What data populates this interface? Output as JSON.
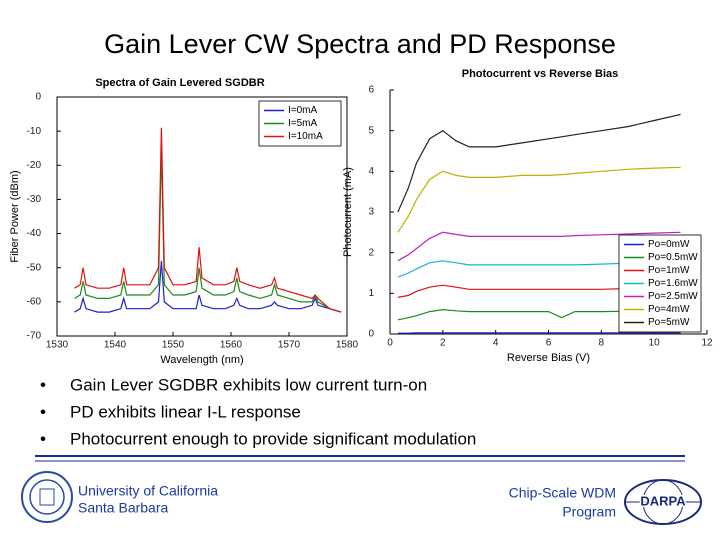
{
  "title": "Gain Lever CW Spectra and PD Response",
  "bullets": [
    "Gain Lever SGDBR exhibits low current turn-on",
    "PD exhibits linear I-L response",
    "Photocurrent enough to provide significant modulation"
  ],
  "footer": {
    "university": [
      "University of California",
      "Santa Barbara"
    ],
    "program": [
      "Chip-Scale WDM",
      "Program"
    ],
    "logo": "DARPA"
  },
  "chart_data": [
    {
      "type": "line",
      "title": "Spectra of Gain Levered SGDBR",
      "xlabel": "Wavelength (nm)",
      "ylabel": "Fiber Power (dBm)",
      "xlim": [
        1530,
        1580
      ],
      "ylim": [
        -70,
        0
      ],
      "xticks": [
        1530,
        1540,
        1550,
        1560,
        1570,
        1580
      ],
      "yticks": [
        0,
        -10,
        -20,
        -30,
        -40,
        -50,
        -60,
        -70
      ],
      "legend": "upper right",
      "x": [
        1533,
        1534,
        1534.5,
        1535,
        1537,
        1539,
        1541,
        1541.5,
        1542,
        1544,
        1546,
        1547.5,
        1548,
        1548.5,
        1550,
        1552,
        1554,
        1554.5,
        1555,
        1557,
        1559,
        1560.5,
        1561,
        1561.5,
        1563,
        1565,
        1567,
        1567.5,
        1568,
        1570,
        1572,
        1574,
        1574.5,
        1575,
        1577,
        1579
      ],
      "series": [
        {
          "name": "I=0mA",
          "color": "#1f1fd0",
          "values": [
            -63,
            -62,
            -59,
            -62,
            -63,
            -63,
            -62,
            -59,
            -62,
            -62,
            -62,
            -60,
            -48,
            -60,
            -62,
            -62,
            -62,
            -58,
            -61,
            -62,
            -62,
            -61,
            -59,
            -61,
            -62,
            -62,
            -61,
            -60,
            -61,
            -62,
            -62,
            -61,
            -59,
            -61,
            -62,
            -63
          ]
        },
        {
          "name": "I=5mA",
          "color": "#1a8c1a",
          "values": [
            -59,
            -58,
            -54,
            -58,
            -59,
            -59,
            -58,
            -54,
            -58,
            -58,
            -58,
            -55,
            -15,
            -55,
            -58,
            -58,
            -57,
            -50,
            -56,
            -58,
            -58,
            -57,
            -53,
            -57,
            -58,
            -59,
            -58,
            -55,
            -58,
            -59,
            -60,
            -60,
            -58,
            -60,
            -62,
            -63
          ]
        },
        {
          "name": "I=10mA",
          "color": "#e01010",
          "values": [
            -56,
            -55,
            -50,
            -55,
            -56,
            -56,
            -55,
            -50,
            -55,
            -55,
            -55,
            -50,
            -9,
            -50,
            -55,
            -55,
            -54,
            -44,
            -53,
            -55,
            -55,
            -54,
            -50,
            -54,
            -55,
            -56,
            -55,
            -53,
            -56,
            -57,
            -58,
            -59,
            -58,
            -59,
            -62,
            -63
          ]
        }
      ]
    },
    {
      "type": "line",
      "title": "Photocurrent vs Reverse Bias",
      "xlabel": "Reverse Bias (V)",
      "ylabel": "Photocurrent (mA)",
      "xlim": [
        0,
        12
      ],
      "ylim": [
        0,
        6
      ],
      "xticks": [
        0,
        2,
        4,
        6,
        8,
        10,
        12
      ],
      "yticks": [
        0,
        1,
        2,
        3,
        4,
        5,
        6
      ],
      "legend": "lower right",
      "x": [
        0.3,
        0.7,
        1,
        1.5,
        2,
        2.5,
        3,
        4,
        5,
        6,
        6.5,
        7,
        8,
        9,
        10,
        11
      ],
      "series": [
        {
          "name": "Po=0mW",
          "color": "#1f1fd0",
          "values": [
            0.02,
            0.02,
            0.03,
            0.03,
            0.03,
            0.03,
            0.03,
            0.03,
            0.03,
            0.03,
            0.03,
            0.03,
            0.03,
            0.03,
            0.03,
            0.03
          ]
        },
        {
          "name": "Po=0.5mW",
          "color": "#1a8c1a",
          "values": [
            0.35,
            0.4,
            0.45,
            0.55,
            0.6,
            0.57,
            0.55,
            0.55,
            0.55,
            0.55,
            0.4,
            0.55,
            0.55,
            0.56,
            0.57,
            0.58
          ]
        },
        {
          "name": "Po=1mW",
          "color": "#e01010",
          "values": [
            0.9,
            0.95,
            1.05,
            1.15,
            1.2,
            1.15,
            1.1,
            1.1,
            1.1,
            1.1,
            1.1,
            1.1,
            1.1,
            1.12,
            1.13,
            1.15
          ]
        },
        {
          "name": "Po=1.6mW",
          "color": "#10b8d0",
          "values": [
            1.4,
            1.5,
            1.6,
            1.75,
            1.8,
            1.75,
            1.7,
            1.7,
            1.7,
            1.7,
            1.7,
            1.7,
            1.72,
            1.74,
            1.75,
            1.77
          ]
        },
        {
          "name": "Po=2.5mW",
          "color": "#c020c0",
          "values": [
            1.8,
            1.95,
            2.1,
            2.35,
            2.5,
            2.45,
            2.4,
            2.4,
            2.4,
            2.4,
            2.4,
            2.42,
            2.44,
            2.46,
            2.48,
            2.5
          ]
        },
        {
          "name": "Po=4mW",
          "color": "#c0b000",
          "values": [
            2.5,
            2.9,
            3.3,
            3.8,
            4.0,
            3.9,
            3.85,
            3.85,
            3.9,
            3.9,
            3.92,
            3.95,
            4.0,
            4.05,
            4.08,
            4.1
          ]
        },
        {
          "name": "Po=5mW",
          "color": "#222222",
          "values": [
            3.0,
            3.6,
            4.2,
            4.8,
            5.0,
            4.75,
            4.6,
            4.6,
            4.7,
            4.8,
            4.85,
            4.9,
            5.0,
            5.1,
            5.25,
            5.4
          ]
        }
      ]
    }
  ]
}
